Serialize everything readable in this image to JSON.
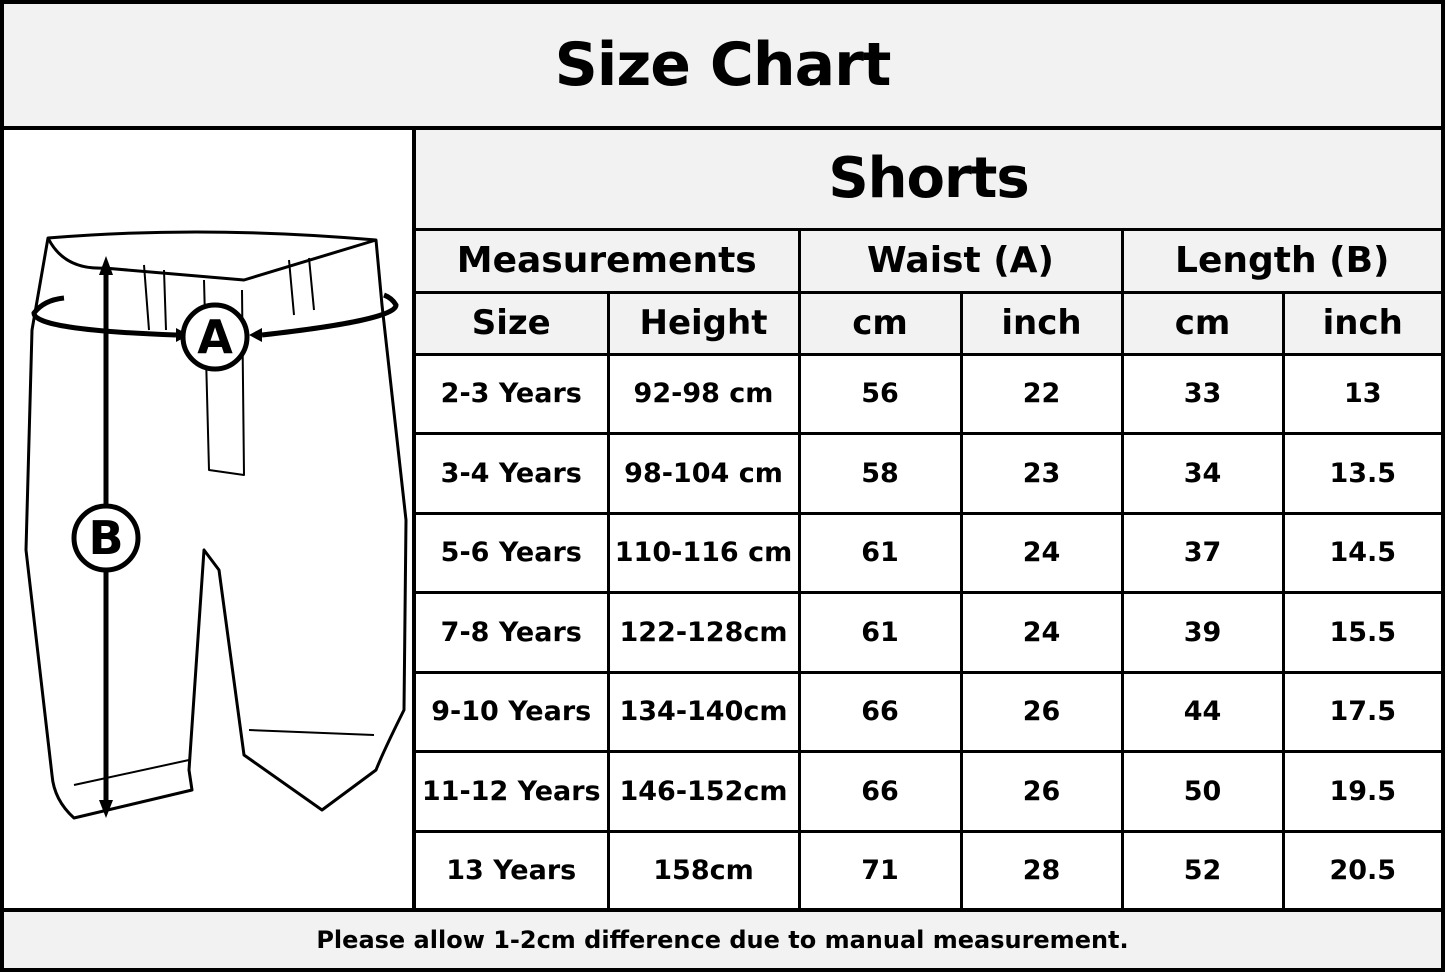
{
  "title": "Size Chart",
  "product": "Shorts",
  "diagram": {
    "waist_marker": "A",
    "length_marker": "B"
  },
  "groups": [
    "Measurements",
    "Waist (A)",
    "Length (B)"
  ],
  "subheaders": [
    "Size",
    "Height",
    "cm",
    "inch",
    "cm",
    "inch"
  ],
  "rows": [
    [
      "2-3 Years",
      "92-98 cm",
      "56",
      "22",
      "33",
      "13"
    ],
    [
      "3-4 Years",
      "98-104 cm",
      "58",
      "23",
      "34",
      "13.5"
    ],
    [
      "5-6 Years",
      "110-116 cm",
      "61",
      "24",
      "37",
      "14.5"
    ],
    [
      "7-8 Years",
      "122-128cm",
      "61",
      "24",
      "39",
      "15.5"
    ],
    [
      "9-10 Years",
      "134-140cm",
      "66",
      "26",
      "44",
      "17.5"
    ],
    [
      "11-12 Years",
      "146-152cm",
      "66",
      "26",
      "50",
      "19.5"
    ],
    [
      "13 Years",
      "158cm",
      "71",
      "28",
      "52",
      "20.5"
    ]
  ],
  "footer": "Please allow 1-2cm difference due to manual measurement."
}
